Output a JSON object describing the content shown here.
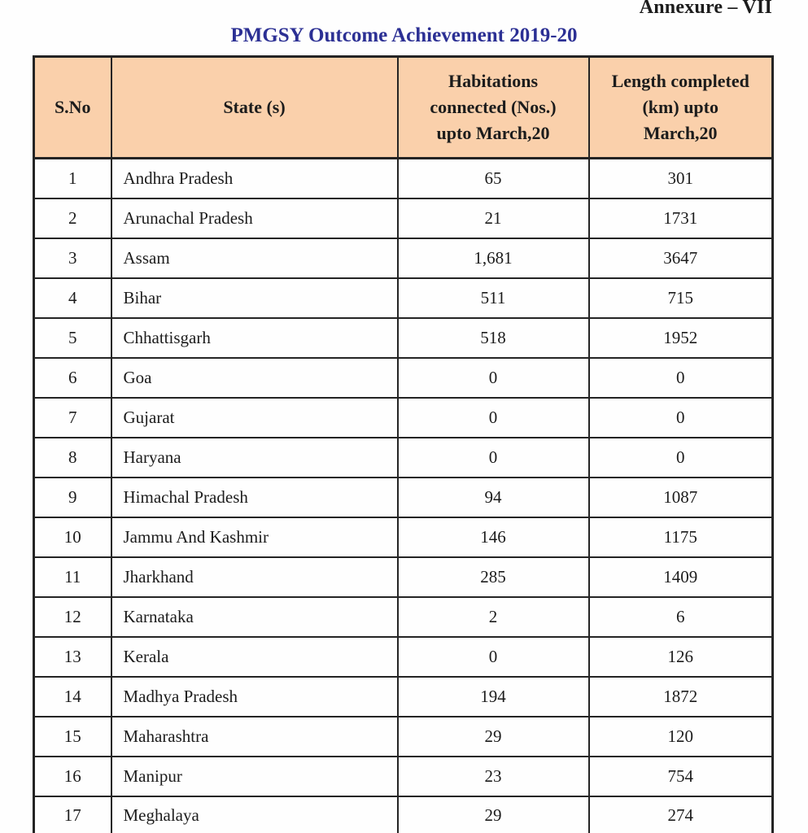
{
  "page": {
    "annexure_label": "Annexure – VII",
    "title": "PMGSY Outcome Achievement 2019-20"
  },
  "colors": {
    "header_bg": "#fad0ab",
    "title_blue": "#2c3094",
    "border": "#242424",
    "text": "#1c1c1c"
  },
  "table": {
    "headers": [
      "S.No",
      "State (s)",
      "Habitations\nconnected (Nos.)\nupto March,20",
      "Length completed\n(km) upto\nMarch,20"
    ],
    "rows": [
      {
        "sno": "1",
        "state": "Andhra Pradesh",
        "habitations": "65",
        "length": "301"
      },
      {
        "sno": "2",
        "state": "Arunachal Pradesh",
        "habitations": "21",
        "length": "1731"
      },
      {
        "sno": "3",
        "state": "Assam",
        "habitations": "1,681",
        "length": "3647"
      },
      {
        "sno": "4",
        "state": "Bihar",
        "habitations": "511",
        "length": "715"
      },
      {
        "sno": "5",
        "state": "Chhattisgarh",
        "habitations": "518",
        "length": "1952"
      },
      {
        "sno": "6",
        "state": "Goa",
        "habitations": "0",
        "length": "0"
      },
      {
        "sno": "7",
        "state": "Gujarat",
        "habitations": "0",
        "length": "0"
      },
      {
        "sno": "8",
        "state": "Haryana",
        "habitations": "0",
        "length": "0"
      },
      {
        "sno": "9",
        "state": "Himachal Pradesh",
        "habitations": "94",
        "length": "1087"
      },
      {
        "sno": "10",
        "state": "Jammu And Kashmir",
        "habitations": "146",
        "length": "1175"
      },
      {
        "sno": "11",
        "state": "Jharkhand",
        "habitations": "285",
        "length": "1409"
      },
      {
        "sno": "12",
        "state": "Karnataka",
        "habitations": "2",
        "length": "6"
      },
      {
        "sno": "13",
        "state": "Kerala",
        "habitations": "0",
        "length": "126"
      },
      {
        "sno": "14",
        "state": "Madhya Pradesh",
        "habitations": "194",
        "length": "1872"
      },
      {
        "sno": "15",
        "state": "Maharashtra",
        "habitations": "29",
        "length": "120"
      },
      {
        "sno": "16",
        "state": "Manipur",
        "habitations": "23",
        "length": "754"
      },
      {
        "sno": "17",
        "state": "Meghalaya",
        "habitations": "29",
        "length": "274"
      }
    ]
  }
}
